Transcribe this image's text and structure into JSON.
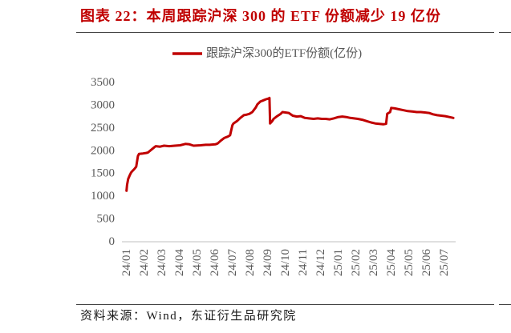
{
  "colors": {
    "caption": "#c00000"
  },
  "figure": {
    "source": "资料来源：Wind，东证衍生品研究院"
  },
  "chart_data": {
    "type": "line",
    "title": "图表 22：本周跟踪沪深 300 的 ETF 份额减少 19 亿份",
    "ylim": [
      0,
      3500
    ],
    "y_ticks": [
      0,
      500,
      1000,
      1500,
      2000,
      2500,
      3000,
      3500
    ],
    "x_tick_labels": [
      "24/01",
      "24/02",
      "24/03",
      "24/04",
      "24/05",
      "24/06",
      "24/07",
      "24/08",
      "24/09",
      "24/10",
      "24/11",
      "24/12",
      "25/01",
      "25/02",
      "25/03",
      "25/04",
      "25/05",
      "25/06",
      "25/07"
    ],
    "legend": "top",
    "grid": false,
    "series": [
      {
        "name": "跟踪沪深300的ETF份额(亿份)",
        "color": "#c00000",
        "x": [
          "2024-01-02",
          "2024-01-03",
          "2024-01-05",
          "2024-01-08",
          "2024-01-10",
          "2024-01-12",
          "2024-01-16",
          "2024-01-19",
          "2024-01-22",
          "2024-01-24",
          "2024-01-31",
          "2024-02-05",
          "2024-02-08",
          "2024-02-19",
          "2024-02-21",
          "2024-02-28",
          "2024-03-06",
          "2024-03-15",
          "2024-03-25",
          "2024-04-03",
          "2024-04-12",
          "2024-04-19",
          "2024-04-26",
          "2024-05-08",
          "2024-05-17",
          "2024-05-24",
          "2024-06-03",
          "2024-06-07",
          "2024-06-12",
          "2024-06-18",
          "2024-06-24",
          "2024-06-28",
          "2024-07-02",
          "2024-07-04",
          "2024-07-10",
          "2024-07-16",
          "2024-07-22",
          "2024-07-26",
          "2024-08-01",
          "2024-08-06",
          "2024-08-12",
          "2024-08-15",
          "2024-08-20",
          "2024-08-26",
          "2024-08-30",
          "2024-09-04",
          "2024-09-05",
          "2024-09-06",
          "2024-09-09",
          "2024-09-12",
          "2024-09-18",
          "2024-09-24",
          "2024-09-27",
          "2024-10-08",
          "2024-10-15",
          "2024-10-22",
          "2024-10-29",
          "2024-11-05",
          "2024-11-12",
          "2024-11-20",
          "2024-11-27",
          "2024-12-04",
          "2024-12-11",
          "2024-12-18",
          "2024-12-25",
          "2025-01-02",
          "2025-01-09",
          "2025-01-16",
          "2025-01-23",
          "2025-02-05",
          "2025-02-12",
          "2025-02-19",
          "2025-02-26",
          "2025-03-05",
          "2025-03-12",
          "2025-03-19",
          "2025-03-24",
          "2025-03-26",
          "2025-03-31",
          "2025-04-02",
          "2025-04-08",
          "2025-04-15",
          "2025-04-23",
          "2025-04-30",
          "2025-05-09",
          "2025-05-16",
          "2025-05-23",
          "2025-05-30",
          "2025-06-06",
          "2025-06-13",
          "2025-06-20",
          "2025-06-27",
          "2025-07-04",
          "2025-07-11",
          "2025-07-18"
        ],
        "y": [
          1120,
          1250,
          1380,
          1470,
          1520,
          1550,
          1600,
          1650,
          1880,
          1930,
          1940,
          1950,
          1960,
          2080,
          2100,
          2090,
          2110,
          2100,
          2110,
          2120,
          2150,
          2140,
          2110,
          2120,
          2130,
          2130,
          2140,
          2160,
          2220,
          2280,
          2310,
          2340,
          2560,
          2600,
          2650,
          2720,
          2780,
          2790,
          2810,
          2850,
          2950,
          3020,
          3080,
          3110,
          3130,
          3150,
          3160,
          2600,
          2640,
          2700,
          2760,
          2810,
          2850,
          2830,
          2770,
          2750,
          2760,
          2720,
          2710,
          2700,
          2710,
          2700,
          2700,
          2690,
          2710,
          2740,
          2750,
          2740,
          2720,
          2700,
          2680,
          2650,
          2620,
          2600,
          2590,
          2580,
          2590,
          2810,
          2850,
          2940,
          2930,
          2910,
          2890,
          2870,
          2860,
          2850,
          2850,
          2840,
          2830,
          2800,
          2780,
          2770,
          2760,
          2740,
          2720
        ]
      }
    ]
  }
}
